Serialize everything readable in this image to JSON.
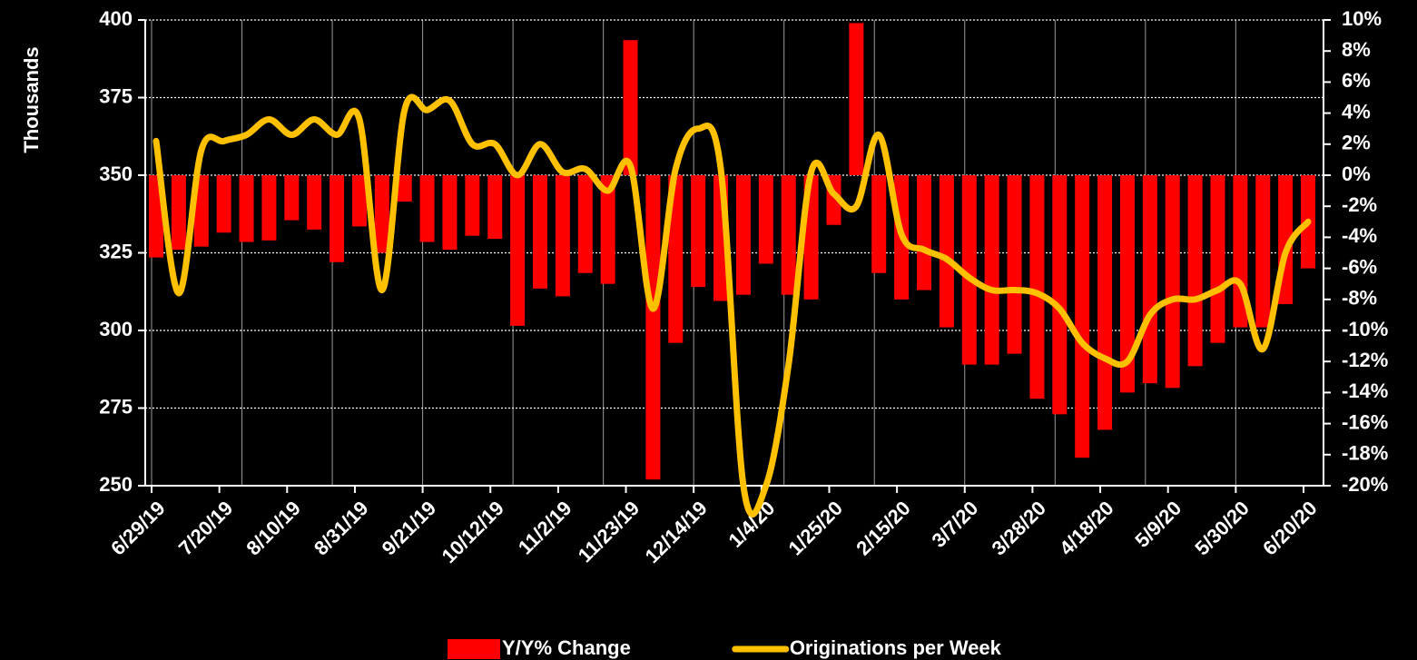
{
  "chart_data": {
    "type": "bar_line",
    "y_label": "Thousands",
    "categories": [
      "6/29/19",
      null,
      null,
      "7/20/19",
      null,
      null,
      "8/10/19",
      null,
      null,
      "8/31/19",
      null,
      null,
      "9/21/19",
      null,
      null,
      "10/12/19",
      null,
      null,
      "11/2/19",
      null,
      null,
      "11/23/19",
      null,
      null,
      "12/14/19",
      null,
      null,
      "1/4/20",
      null,
      null,
      "1/25/20",
      null,
      null,
      "2/15/20",
      null,
      null,
      "3/7/20",
      null,
      null,
      "3/28/20",
      null,
      null,
      "4/18/20",
      null,
      null,
      "5/9/20",
      null,
      null,
      "5/30/20",
      null,
      null,
      "6/20/20"
    ],
    "series": [
      {
        "name": "Y/Y% Change",
        "type": "bar",
        "axis": "y2",
        "color": "#ff0000",
        "values": [
          -5.3,
          -4.8,
          -4.6,
          -3.7,
          -4.3,
          -4.2,
          -2.9,
          -3.5,
          -5.6,
          -3.3,
          -5.0,
          -1.7,
          -4.3,
          -4.8,
          -3.9,
          -4.1,
          -9.7,
          -7.3,
          -7.8,
          -6.3,
          -7.0,
          8.7,
          -19.6,
          -10.8,
          -7.2,
          -8.1,
          -7.7,
          -5.7,
          -7.7,
          -8.0,
          -3.2,
          9.8,
          -6.3,
          -8.0,
          -7.4,
          -9.8,
          -12.2,
          -12.2,
          -11.5,
          -14.4,
          -15.4,
          -18.2,
          -16.4,
          -14.0,
          -13.4,
          -13.7,
          -12.3,
          -10.8,
          -9.8,
          -9.8,
          -8.3,
          -6.0
        ]
      },
      {
        "name": "Originations per Week",
        "type": "line",
        "axis": "y",
        "color": "#ffc000",
        "values": [
          361,
          312,
          358,
          361,
          363,
          368,
          363,
          368,
          363,
          368,
          313,
          371,
          371,
          374,
          360,
          360,
          350,
          360,
          351,
          352,
          345,
          353,
          307,
          352,
          365,
          352,
          250,
          250,
          289,
          351,
          344,
          340,
          363,
          331,
          326,
          323,
          317,
          313,
          313,
          312,
          307,
          296,
          291,
          290,
          305,
          310,
          310,
          313,
          315,
          294,
          325,
          335
        ]
      }
    ],
    "ylim": [
      250,
      400
    ],
    "yticks": [
      250,
      275,
      300,
      325,
      350,
      375,
      400
    ],
    "y2lim": [
      -20,
      10
    ],
    "y2ticks": [
      {
        "value": -20,
        "label": "-20%"
      },
      {
        "value": -18,
        "label": "-18%"
      },
      {
        "value": -16,
        "label": "-16%"
      },
      {
        "value": -14,
        "label": "-14%"
      },
      {
        "value": -12,
        "label": "-12%"
      },
      {
        "value": -10,
        "label": "-10%"
      },
      {
        "value": -8,
        "label": "-8%"
      },
      {
        "value": -6,
        "label": "-6%"
      },
      {
        "value": -4,
        "label": "-4%"
      },
      {
        "value": -2,
        "label": "-2%"
      },
      {
        "value": 0,
        "label": "0%"
      },
      {
        "value": 2,
        "label": "2%"
      },
      {
        "value": 4,
        "label": "4%"
      },
      {
        "value": 6,
        "label": "6%"
      },
      {
        "value": 8,
        "label": "8%"
      },
      {
        "value": 10,
        "label": "10%"
      }
    ],
    "grid": true,
    "legend": "bottom"
  }
}
